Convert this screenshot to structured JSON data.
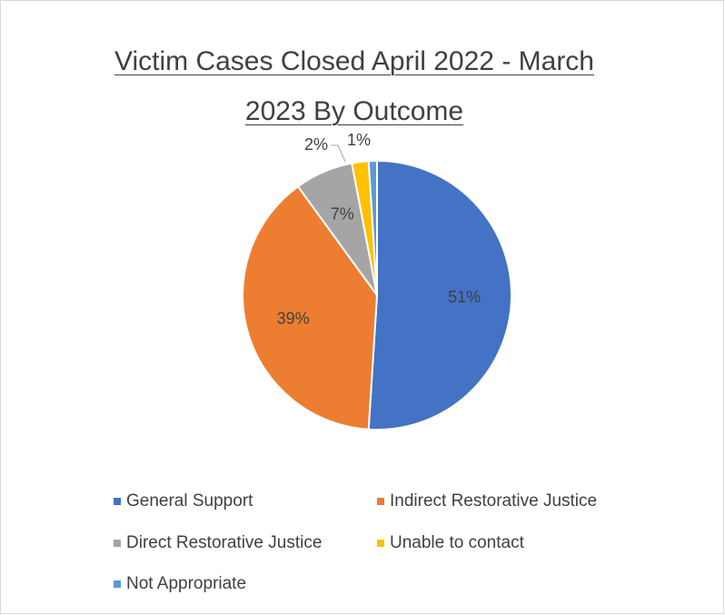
{
  "chart_data": {
    "type": "pie",
    "title": "Victim Cases Closed April 2022 - March 2023 By Outcome",
    "categories": [
      "General Support",
      "Indirect Restorative Justice",
      "Direct Restorative Justice",
      "Unable to contact",
      "Not Appropriate"
    ],
    "values": [
      51,
      39,
      7,
      2,
      1
    ],
    "value_labels": [
      "51%",
      "39%",
      "7%",
      "2%",
      "1%"
    ],
    "colors": [
      "#4472c4",
      "#ed7d31",
      "#a5a5a5",
      "#ffc000",
      "#5b9bd5"
    ],
    "legend": "bottom"
  }
}
